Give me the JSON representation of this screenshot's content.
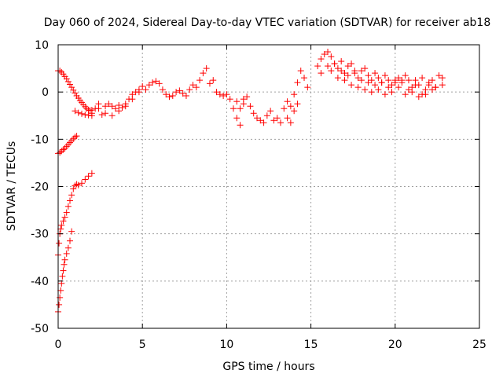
{
  "chart_data": {
    "type": "scatter",
    "title": "Day 060 of 2024, Sidereal Day-to-day VTEC variation (SDTVAR) for receiver ab18",
    "xlabel": "GPS time / hours",
    "ylabel": "SDTVAR / TECUs",
    "xlim": [
      0,
      25
    ],
    "ylim": [
      -50,
      10
    ],
    "xticks": [
      0,
      5,
      10,
      15,
      20,
      25
    ],
    "yticks": [
      -50,
      -40,
      -30,
      -20,
      -10,
      0,
      10
    ],
    "grid": true,
    "marker": "+",
    "series_color": "#ff0000",
    "series": [
      {
        "name": "SDTVAR",
        "x": [
          0.0,
          0.1,
          0.2,
          0.3,
          0.4,
          0.5,
          0.6,
          0.7,
          0.8,
          0.9,
          1.0,
          1.1,
          1.2,
          1.3,
          1.4,
          1.5,
          1.6,
          1.7,
          1.8,
          1.9,
          2.0,
          1.0,
          1.2,
          1.4,
          1.6,
          1.8,
          2.0,
          0.0,
          0.1,
          0.2,
          0.3,
          0.4,
          0.5,
          0.6,
          0.7,
          0.8,
          0.9,
          1.0,
          1.1,
          0.0,
          0.05,
          0.1,
          0.15,
          0.2,
          0.3,
          0.4,
          0.5,
          0.6,
          0.7,
          0.8,
          0.9,
          1.0,
          1.1,
          1.2,
          1.4,
          1.6,
          1.8,
          2.0,
          0.0,
          0.05,
          0.1,
          0.15,
          0.2,
          0.25,
          0.3,
          0.35,
          0.4,
          0.5,
          0.6,
          0.7,
          0.8,
          2.0,
          2.2,
          2.4,
          2.6,
          2.8,
          3.0,
          3.2,
          3.4,
          3.6,
          3.8,
          4.0,
          4.2,
          4.4,
          4.6,
          4.8,
          5.0,
          5.2,
          5.4,
          5.6,
          5.8,
          6.0,
          6.2,
          6.4,
          6.6,
          6.8,
          7.0,
          7.2,
          7.4,
          7.6,
          7.8,
          8.0,
          8.2,
          8.4,
          8.6,
          8.8,
          2.4,
          2.8,
          3.2,
          3.6,
          4.0,
          4.4,
          4.8,
          9.0,
          9.2,
          9.4,
          9.6,
          9.8,
          10.0,
          10.2,
          10.4,
          10.6,
          10.8,
          11.0,
          11.2,
          11.4,
          11.6,
          11.8,
          12.0,
          12.2,
          12.4,
          12.6,
          12.8,
          13.0,
          13.2,
          13.4,
          13.6,
          13.8,
          14.0,
          14.2,
          14.4,
          14.6,
          14.8,
          10.6,
          10.8,
          11.0,
          13.6,
          13.8,
          14.0,
          14.2,
          15.4,
          15.6,
          15.8,
          16.0,
          16.2,
          16.4,
          16.6,
          16.8,
          17.0,
          17.2,
          17.4,
          17.6,
          17.8,
          18.0,
          18.2,
          18.4,
          18.6,
          18.8,
          19.0,
          19.2,
          19.4,
          19.6,
          19.8,
          20.0,
          20.2,
          20.4,
          20.6,
          20.8,
          21.0,
          21.2,
          21.4,
          21.6,
          21.8,
          22.0,
          22.2,
          22.4,
          22.6,
          22.8,
          15.6,
          16.0,
          16.4,
          16.8,
          17.2,
          17.6,
          18.0,
          18.4,
          18.8,
          19.2,
          19.6,
          20.0,
          20.4,
          20.8,
          21.2,
          21.6,
          22.0,
          22.4,
          22.8,
          16.2,
          16.6,
          17.0,
          17.4,
          17.8,
          18.2,
          18.6,
          19.0,
          19.4,
          19.8,
          20.2,
          20.6,
          21.0,
          21.4,
          21.8,
          22.2
        ],
        "y": [
          4.5,
          4.5,
          4.2,
          3.8,
          3.3,
          2.8,
          2.2,
          1.6,
          1.0,
          0.4,
          -0.2,
          -0.8,
          -1.3,
          -1.8,
          -2.2,
          -2.7,
          -3.1,
          -3.5,
          -3.8,
          -3.9,
          -3.8,
          -4.0,
          -4.4,
          -4.6,
          -4.8,
          -4.9,
          -5.0,
          -13.0,
          -12.8,
          -12.5,
          -12.2,
          -11.9,
          -11.5,
          -11.1,
          -10.7,
          -10.3,
          -9.9,
          -9.5,
          -9.3,
          -34.5,
          -32.0,
          -30.0,
          -29.0,
          -28.2,
          -27.3,
          -26.5,
          -25.5,
          -24.2,
          -23.0,
          -21.8,
          -20.5,
          -19.8,
          -19.5,
          -19.7,
          -19.3,
          -18.5,
          -17.8,
          -17.2,
          -46.5,
          -45.0,
          -43.5,
          -42.0,
          -40.5,
          -39.0,
          -37.8,
          -36.5,
          -35.5,
          -34.2,
          -33.0,
          -31.5,
          -29.5,
          -4.5,
          -3.5,
          -2.5,
          -4.8,
          -3.0,
          -2.5,
          -3.0,
          -3.5,
          -2.8,
          -3.3,
          -2.5,
          -1.5,
          -0.5,
          0.0,
          0.5,
          1.2,
          0.5,
          1.5,
          2.0,
          2.3,
          1.8,
          0.5,
          -0.5,
          -1.0,
          -0.8,
          0.0,
          0.3,
          -0.3,
          -0.8,
          0.5,
          1.5,
          1.0,
          2.5,
          4.0,
          5.0,
          -3.5,
          -4.5,
          -5.0,
          -4.0,
          -3.0,
          -1.5,
          0.0,
          1.8,
          2.5,
          0.0,
          -0.5,
          -0.8,
          -0.5,
          -1.5,
          -3.5,
          -5.5,
          -7.0,
          -2.5,
          -1.0,
          -3.0,
          -4.5,
          -5.5,
          -6.0,
          -6.5,
          -5.0,
          -4.0,
          -6.0,
          -5.5,
          -6.5,
          -3.5,
          -2.0,
          -3.0,
          -0.5,
          2.0,
          4.5,
          3.0,
          1.0,
          -2.0,
          -3.5,
          -1.5,
          -5.5,
          -6.5,
          -4.0,
          -2.5,
          5.5,
          7.0,
          8.0,
          8.5,
          7.5,
          6.0,
          5.0,
          6.5,
          4.0,
          5.5,
          6.0,
          4.5,
          3.0,
          4.5,
          5.0,
          3.5,
          2.5,
          4.0,
          3.0,
          2.0,
          3.5,
          2.5,
          1.5,
          2.5,
          3.0,
          2.0,
          3.5,
          2.5,
          1.0,
          2.5,
          1.5,
          3.0,
          0.5,
          1.5,
          2.5,
          1.0,
          3.5,
          3.0,
          4.0,
          5.5,
          6.0,
          4.5,
          3.5,
          4.0,
          2.5,
          2.0,
          1.5,
          2.0,
          1.0,
          2.0,
          2.5,
          0.5,
          1.5,
          -0.5,
          2.0,
          1.0,
          1.5,
          4.5,
          3.0,
          2.5,
          1.5,
          1.0,
          0.5,
          0.0,
          0.5,
          -0.5,
          0.0,
          1.0,
          -0.5,
          0.0,
          -1.0,
          -0.5,
          0.5
        ]
      }
    ]
  }
}
